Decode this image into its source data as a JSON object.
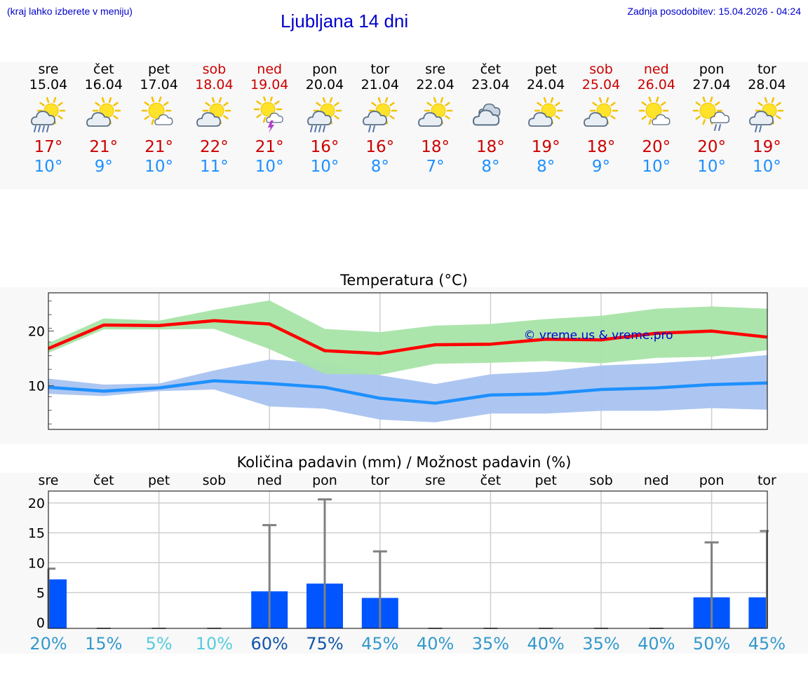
{
  "header": {
    "hint": "(kraj lahko izberete v meniju)",
    "title": "Ljubljana 14 dni",
    "updated": "Zadnja posodobitev: 15.04.2026 - 04:24"
  },
  "days": [
    {
      "name": "sre",
      "date": "15.04",
      "max": "17°",
      "min": "10°",
      "icon": "partly-sunny-rain-icon",
      "weekend": false
    },
    {
      "name": "čet",
      "date": "16.04",
      "max": "21°",
      "min": "9°",
      "icon": "partly-sunny-icon",
      "weekend": false
    },
    {
      "name": "pet",
      "date": "17.04",
      "max": "21°",
      "min": "10°",
      "icon": "mostly-sunny-icon",
      "weekend": false
    },
    {
      "name": "sob",
      "date": "18.04",
      "max": "22°",
      "min": "11°",
      "icon": "partly-sunny-icon",
      "weekend": true
    },
    {
      "name": "ned",
      "date": "19.04",
      "max": "21°",
      "min": "10°",
      "icon": "sunny-thunderstorm-icon",
      "weekend": true
    },
    {
      "name": "pon",
      "date": "20.04",
      "max": "16°",
      "min": "10°",
      "icon": "partly-sunny-rain-icon",
      "weekend": false
    },
    {
      "name": "tor",
      "date": "21.04",
      "max": "16°",
      "min": "8°",
      "icon": "partly-sunny-light-rain-icon",
      "weekend": false
    },
    {
      "name": "sre",
      "date": "22.04",
      "max": "18°",
      "min": "7°",
      "icon": "partly-sunny-icon",
      "weekend": false
    },
    {
      "name": "čet",
      "date": "23.04",
      "max": "18°",
      "min": "8°",
      "icon": "cloudy-icon",
      "weekend": false
    },
    {
      "name": "pet",
      "date": "24.04",
      "max": "19°",
      "min": "8°",
      "icon": "partly-sunny-icon",
      "weekend": false
    },
    {
      "name": "sob",
      "date": "25.04",
      "max": "18°",
      "min": "9°",
      "icon": "partly-sunny-icon",
      "weekend": true
    },
    {
      "name": "ned",
      "date": "26.04",
      "max": "20°",
      "min": "10°",
      "icon": "mostly-sunny-icon",
      "weekend": true
    },
    {
      "name": "pon",
      "date": "27.04",
      "max": "20°",
      "min": "10°",
      "icon": "sun-shower-icon",
      "weekend": false
    },
    {
      "name": "tor",
      "date": "28.04",
      "max": "19°",
      "min": "10°",
      "icon": "partly-sunny-light-rain-icon",
      "weekend": false
    }
  ],
  "colors": {
    "max_line": "#ff0000",
    "max_band": "#a8e4a8",
    "min_line": "#1e90ff",
    "min_band": "#a9c3f0",
    "bar": "#0055ff",
    "error_bar": "#808080",
    "weekend_text": "#cc0000"
  },
  "chart_data": [
    {
      "type": "line",
      "title": "Temperatura (°C)",
      "watermark": "© vreme.us & vreme.pro",
      "categories": [
        "15.04",
        "16.04",
        "17.04",
        "18.04",
        "19.04",
        "20.04",
        "21.04",
        "22.04",
        "23.04",
        "24.04",
        "25.04",
        "26.04",
        "27.04",
        "28.04"
      ],
      "yticks": [
        10,
        20
      ],
      "ylim": [
        2,
        27
      ],
      "grid": true,
      "series": [
        {
          "role": "max",
          "values": [
            16.8,
            21.1,
            21.0,
            21.9,
            21.3,
            16.4,
            15.9,
            17.5,
            17.6,
            18.5,
            18.4,
            19.6,
            20.0,
            18.9
          ],
          "band_low": [
            16.0,
            20.3,
            20.3,
            20.4,
            16.7,
            12.2,
            12.0,
            14.0,
            14.2,
            14.5,
            14.1,
            15.1,
            15.3,
            16.5
          ],
          "band_high": [
            17.8,
            22.3,
            21.9,
            23.9,
            25.6,
            20.4,
            19.8,
            21.0,
            21.3,
            22.2,
            22.8,
            24.1,
            24.5,
            24.1
          ]
        },
        {
          "role": "min",
          "values": [
            9.7,
            9.0,
            9.6,
            10.9,
            10.4,
            9.7,
            7.7,
            6.8,
            8.3,
            8.5,
            9.3,
            9.6,
            10.2,
            10.5
          ],
          "band_low": [
            8.5,
            8.1,
            9.0,
            9.3,
            6.2,
            5.8,
            3.8,
            3.3,
            4.9,
            4.9,
            5.4,
            5.4,
            5.9,
            5.6
          ],
          "band_high": [
            11.3,
            10.2,
            10.4,
            12.8,
            14.8,
            14.1,
            11.9,
            10.3,
            12.1,
            12.6,
            13.7,
            14.1,
            14.8,
            15.6
          ]
        }
      ]
    },
    {
      "type": "bar",
      "title": "Količina padavin (mm) / Možnost padavin (%)",
      "categories": [
        "sre",
        "čet",
        "pet",
        "sob",
        "ned",
        "pon",
        "tor",
        "sre",
        "čet",
        "pet",
        "sob",
        "ned",
        "pon",
        "tor"
      ],
      "yticks": [
        "0",
        "5",
        "10",
        "15",
        "20"
      ],
      "ylim": [
        -1,
        22
      ],
      "grid": true,
      "values": [
        7.2,
        0,
        0,
        0,
        5.2,
        6.5,
        4.1,
        0,
        0,
        0,
        0,
        0,
        4.2,
        4.2
      ],
      "error_high": [
        9.0,
        0,
        0,
        0,
        16.3,
        20.6,
        11.9,
        0,
        0,
        0,
        0,
        0,
        13.4,
        15.3
      ],
      "probability": [
        "20%",
        "15%",
        "5%",
        "10%",
        "60%",
        "75%",
        "45%",
        "40%",
        "35%",
        "40%",
        "35%",
        "40%",
        "50%",
        "45%"
      ],
      "probability_colors": [
        "#3399cc",
        "#3399cc",
        "#55ccdd",
        "#55ccdd",
        "#1155aa",
        "#1155aa",
        "#3399cc",
        "#3399cc",
        "#3399cc",
        "#3399cc",
        "#3399cc",
        "#3399cc",
        "#3399cc",
        "#3399cc"
      ]
    }
  ]
}
